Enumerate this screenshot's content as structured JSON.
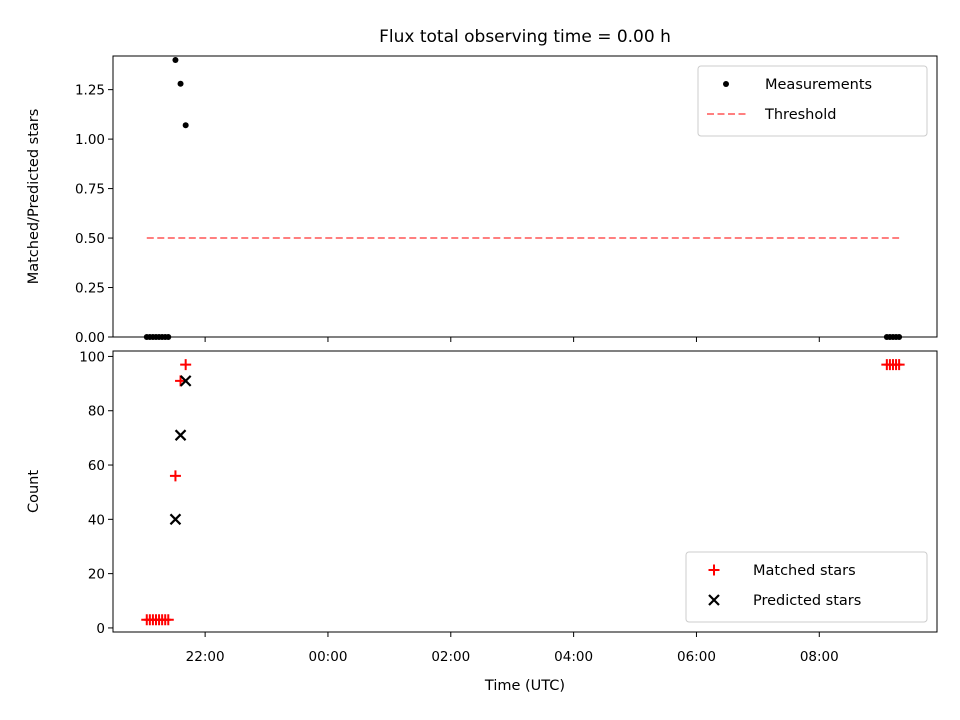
{
  "chart_data": [
    {
      "type": "scatter",
      "title": "Flux total observing time = 0.00 h",
      "xlabel": "",
      "ylabel": "Matched/Predicted stars",
      "xlim": [
        "20:30",
        "09:55"
      ],
      "ylim": [
        0,
        1.42
      ],
      "yticks": [
        0.0,
        0.25,
        0.5,
        0.75,
        1.0,
        1.25
      ],
      "ytick_labels": [
        "0.00",
        "0.25",
        "0.50",
        "0.75",
        "1.00",
        "1.25"
      ],
      "xticks": [
        "22:00",
        "00:00",
        "02:00",
        "04:00",
        "06:00",
        "08:00"
      ],
      "show_xtick_labels": false,
      "grid": false,
      "legend": {
        "placement": "upper-right",
        "entries": [
          "Measurements",
          "Threshold"
        ]
      },
      "series": [
        {
          "name": "Measurements",
          "kind": "scatter",
          "marker": "dot",
          "color": "#000000",
          "x": [
            "21:03",
            "21:06",
            "21:09",
            "21:12",
            "21:15",
            "21:18",
            "21:21",
            "21:24",
            "21:31",
            "21:36",
            "21:41",
            "09:06",
            "09:09",
            "09:12",
            "09:15",
            "09:18"
          ],
          "y": [
            0,
            0,
            0,
            0,
            0,
            0,
            0,
            0,
            1.4,
            1.28,
            1.07,
            0,
            0,
            0,
            0,
            0
          ]
        },
        {
          "name": "Threshold",
          "kind": "line",
          "style": "dashed",
          "color": "#ff7f7f",
          "x": [
            "21:03",
            "09:18"
          ],
          "y": [
            0.5,
            0.5
          ]
        }
      ]
    },
    {
      "type": "scatter",
      "title": "",
      "xlabel": "Time (UTC)",
      "ylabel": "Count",
      "xlim": [
        "20:30",
        "09:55"
      ],
      "ylim": [
        -1.5,
        102
      ],
      "yticks": [
        0,
        20,
        40,
        60,
        80,
        100
      ],
      "ytick_labels": [
        "0",
        "20",
        "40",
        "60",
        "80",
        "100"
      ],
      "xticks": [
        "22:00",
        "00:00",
        "02:00",
        "04:00",
        "06:00",
        "08:00"
      ],
      "show_xtick_labels": true,
      "grid": false,
      "legend": {
        "placement": "lower-right",
        "entries": [
          "Matched stars",
          "Predicted stars"
        ]
      },
      "series": [
        {
          "name": "Matched stars",
          "kind": "scatter",
          "marker": "plus",
          "color": "#ff0000",
          "x": [
            "21:03",
            "21:06",
            "21:09",
            "21:12",
            "21:15",
            "21:18",
            "21:21",
            "21:24",
            "21:31",
            "21:36",
            "21:41",
            "09:06",
            "09:09",
            "09:12",
            "09:15",
            "09:18"
          ],
          "y": [
            3,
            3,
            3,
            3,
            3,
            3,
            3,
            3,
            56,
            91,
            97,
            97,
            97,
            97,
            97,
            97
          ]
        },
        {
          "name": "Predicted stars",
          "kind": "scatter",
          "marker": "x",
          "color": "#000000",
          "x": [
            "21:31",
            "21:36",
            "21:41"
          ],
          "y": [
            40,
            71,
            91
          ]
        }
      ]
    }
  ]
}
